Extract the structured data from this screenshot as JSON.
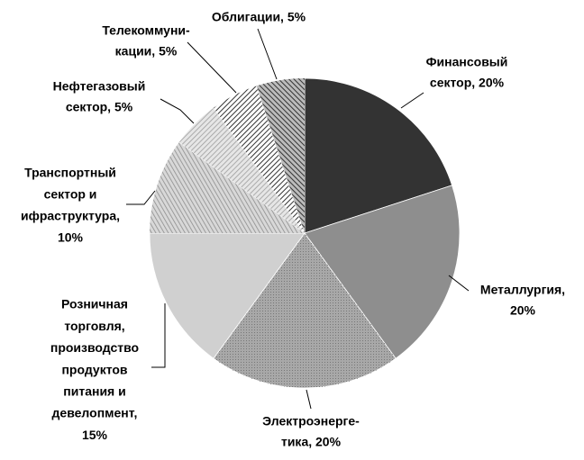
{
  "chart_data": {
    "type": "pie",
    "values": [
      20,
      20,
      20,
      15,
      10,
      5,
      5,
      5
    ],
    "value_labels": [
      [
        "Финансовый",
        "сектор, 20%"
      ],
      [
        "Металлургия,",
        "20%"
      ],
      [
        "Электроэнерге-",
        "тика, 20%"
      ],
      [
        "Розничная",
        "торговля,",
        "производство",
        "продуктов",
        "питания и",
        "девелопмент,",
        "15%"
      ],
      [
        "Транспортный",
        "сектор и",
        "ифраструктура,",
        "10%"
      ],
      [
        "Нефтегазовый",
        "сектор, 5%"
      ],
      [
        "Телекоммуни-",
        "кации, 5%"
      ],
      [
        "Облигации, 5%"
      ]
    ],
    "colors": [
      "#333333",
      "#8e8e8e",
      "#a8a8a8",
      "#d0d0d0",
      "#b8b8b8",
      "#c8c8c8",
      "#888888",
      "#777777"
    ]
  }
}
